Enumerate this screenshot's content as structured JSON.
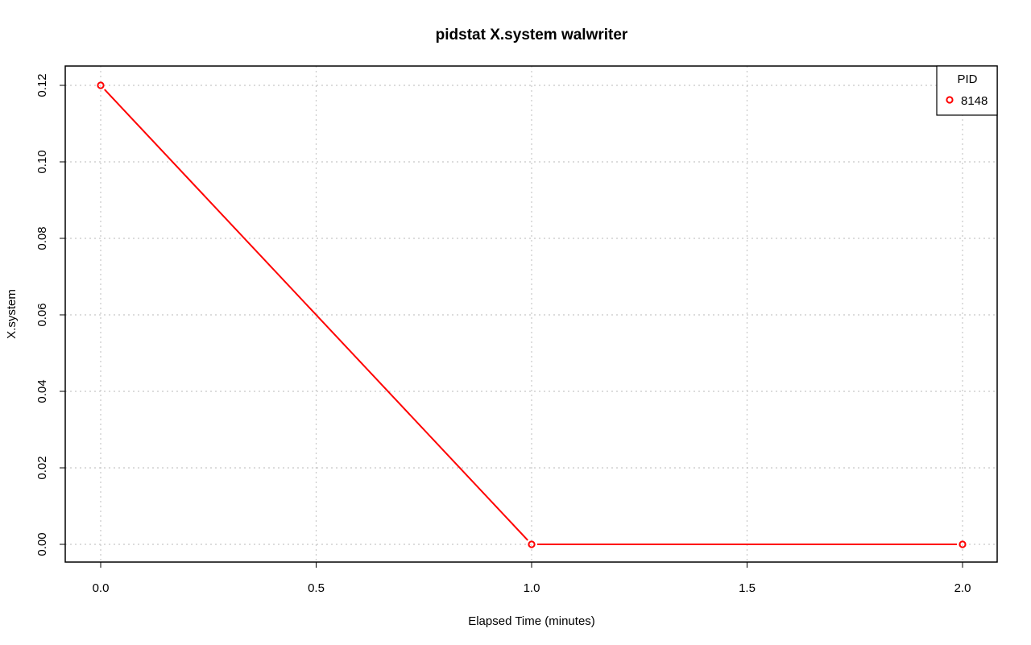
{
  "chart_data": {
    "type": "line",
    "title": "pidstat X.system walwriter",
    "xlabel": "Elapsed Time (minutes)",
    "ylabel": "X.system",
    "xlim": [
      0.0,
      2.0
    ],
    "ylim": [
      0.0,
      0.12
    ],
    "x_ticks": [
      0.0,
      0.5,
      1.0,
      1.5,
      2.0
    ],
    "x_tick_labels": [
      "0.0",
      "0.5",
      "1.0",
      "1.5",
      "2.0"
    ],
    "y_ticks": [
      0.0,
      0.02,
      0.04,
      0.06,
      0.08,
      0.1,
      0.12
    ],
    "y_tick_labels": [
      "0.00",
      "0.02",
      "0.04",
      "0.06",
      "0.08",
      "0.10",
      "0.12"
    ],
    "grid": true,
    "legend": {
      "title": "PID",
      "placement": "top-right"
    },
    "series": [
      {
        "name": "8148",
        "color": "#ff0000",
        "x": [
          0.0,
          1.0,
          2.0
        ],
        "values": [
          0.12,
          0.0,
          0.0
        ]
      }
    ]
  }
}
